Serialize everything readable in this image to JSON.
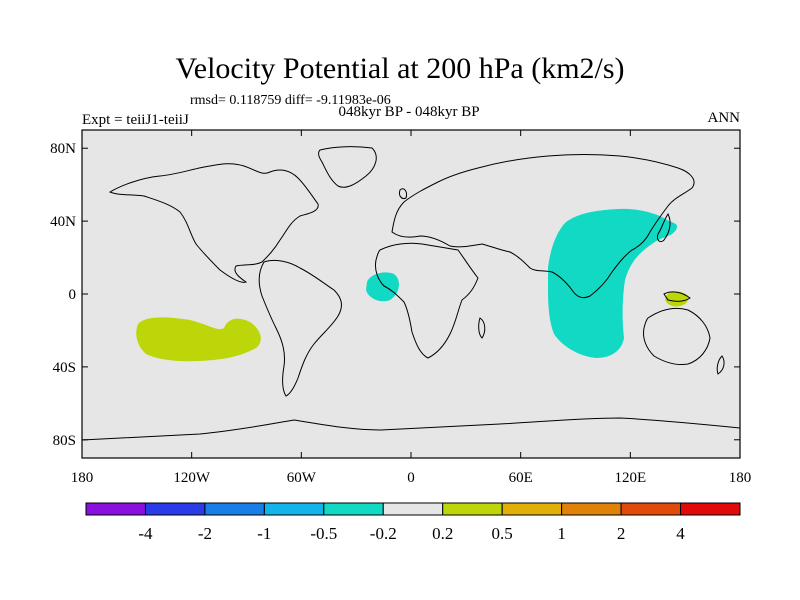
{
  "title": "Velocity Potential at 200 hPa (km2/s)",
  "stats": "rmsd= 0.118759 diff= -9.11983e-06",
  "left_label": "Expt = teiiJ1-teiiJ",
  "center_label": "048kyr BP - 048kyr BP",
  "right_label": "ANN",
  "map_data": {
    "projection": "cylindrical equidistant",
    "lon_range": [
      -180,
      180
    ],
    "lat_range": [
      -90,
      90
    ],
    "lat_ticks": [
      {
        "value": 80,
        "label": "80N"
      },
      {
        "value": 40,
        "label": "40N"
      },
      {
        "value": 0,
        "label": "0"
      },
      {
        "value": -40,
        "label": "40S"
      },
      {
        "value": -80,
        "label": "80S"
      }
    ],
    "lon_ticks": [
      {
        "value": -180,
        "label": "180"
      },
      {
        "value": -120,
        "label": "120W"
      },
      {
        "value": -60,
        "label": "60W"
      },
      {
        "value": 0,
        "label": "0"
      },
      {
        "value": 60,
        "label": "60E"
      },
      {
        "value": 120,
        "label": "120E"
      },
      {
        "value": 180,
        "label": "180"
      }
    ],
    "background_color": "#e6e6e6",
    "anomaly_regions": [
      {
        "name": "south-east-pacific-positive",
        "bin": "0.2 to 0.5",
        "color": "#bcd60a"
      },
      {
        "name": "gulf-of-guinea-negative",
        "bin": "-0.5 to -0.2",
        "color": "#12d9c4"
      },
      {
        "name": "indo-west-pacific-negative",
        "bin": "-0.5 to -0.2",
        "color": "#12d9c4"
      },
      {
        "name": "new-guinea-positive",
        "bin": "0.2 to 0.5",
        "color": "#bcd60a"
      }
    ]
  },
  "colorbar": {
    "colors": [
      "#8a10e0",
      "#2a3ce8",
      "#1a7ee8",
      "#12b4ea",
      "#12d9c4",
      "#e6e6e6",
      "#bcd60a",
      "#e0b008",
      "#e0820a",
      "#e04a0a",
      "#e00a0a"
    ],
    "labels": [
      "-4",
      "-2",
      "-1",
      "-0.5",
      "-0.2",
      "0.2",
      "0.5",
      "1",
      "2",
      "4"
    ]
  }
}
